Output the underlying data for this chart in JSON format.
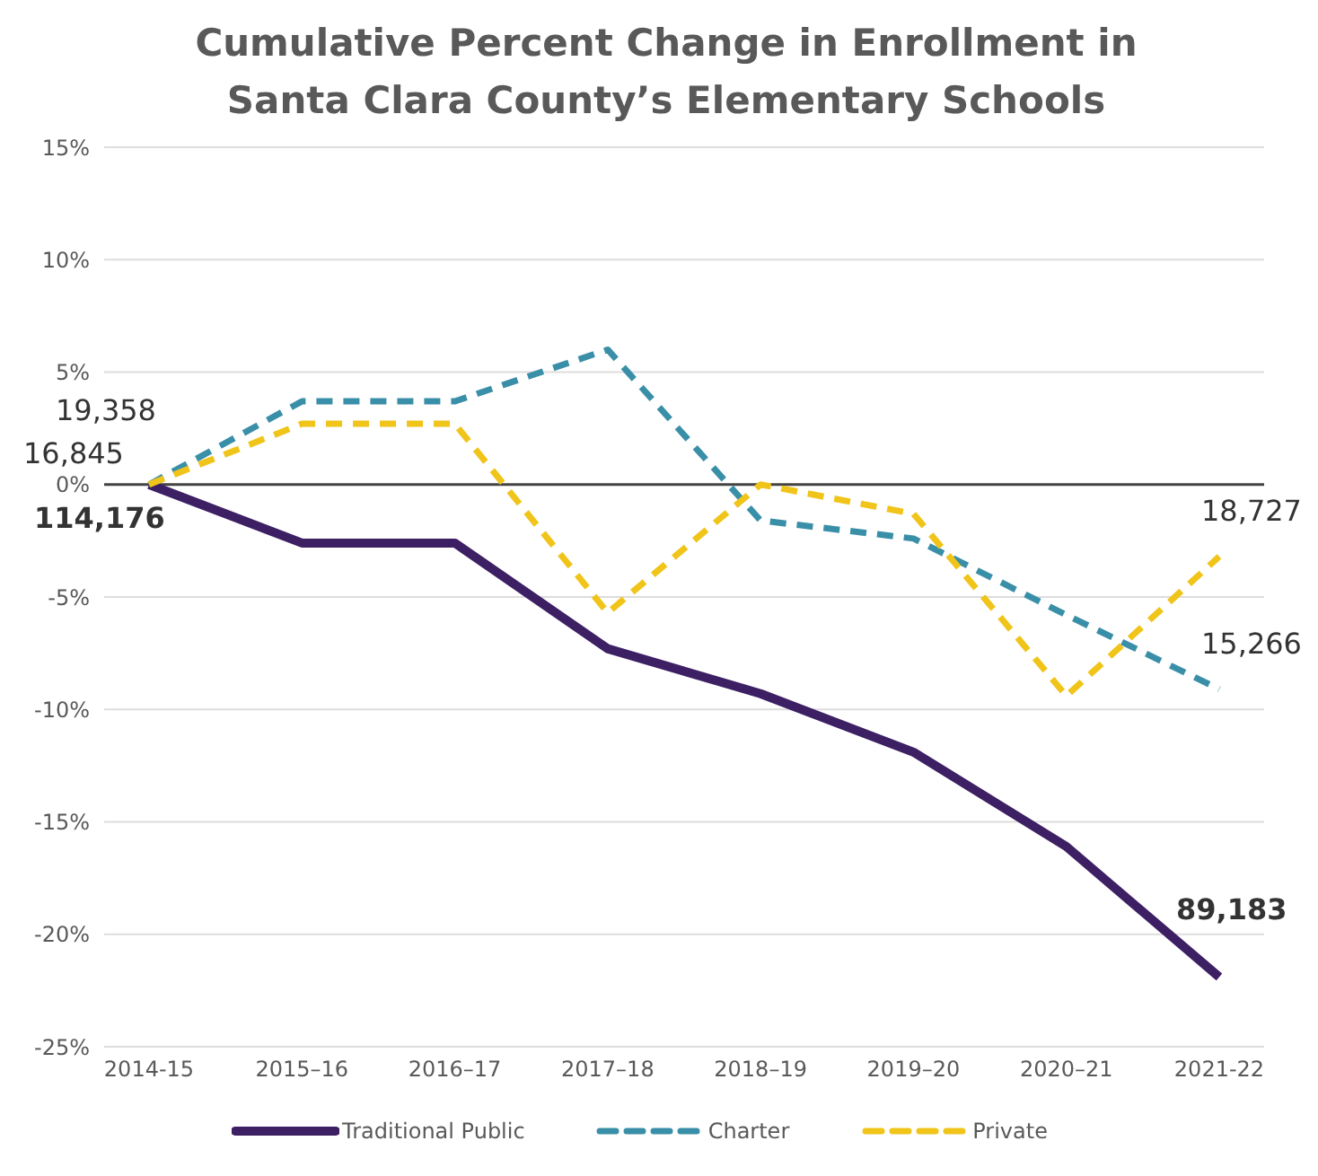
{
  "chart_data": {
    "type": "line",
    "title": "Cumulative Percent Change in Enrollment in Santa Clara County’s Elementary Schools",
    "categories": [
      "2014-15",
      "2015–16",
      "2016–17",
      "2017–18",
      "2018–19",
      "2019–20",
      "2020–21",
      "2021-22"
    ],
    "series": [
      {
        "name": "Traditional Public",
        "color": "#3d1f63",
        "line_style": "solid",
        "values": [
          0,
          -2.6,
          -2.6,
          -7.3,
          -9.3,
          -11.9,
          -16.1,
          -21.9
        ]
      },
      {
        "name": "Charter",
        "color": "#3a8fa8",
        "line_style": "dashed",
        "values": [
          0,
          3.7,
          3.7,
          6.0,
          -1.6,
          -2.4,
          -5.8,
          -9.1
        ]
      },
      {
        "name": "Private",
        "color": "#f0c419",
        "line_style": "dashed",
        "values": [
          0,
          2.7,
          2.7,
          -5.7,
          0,
          -1.3,
          -9.4,
          -3.2
        ]
      }
    ],
    "ylim": [
      -25,
      15
    ],
    "yticks": [
      {
        "value": -25,
        "label": "-25%"
      },
      {
        "value": -20,
        "label": "-20%"
      },
      {
        "value": -15,
        "label": "-15%"
      },
      {
        "value": -10,
        "label": "-10%"
      },
      {
        "value": -5,
        "label": "-5%"
      },
      {
        "value": 0,
        "label": "0%"
      },
      {
        "value": 5,
        "label": "5%"
      },
      {
        "value": 10,
        "label": "10%"
      },
      {
        "value": 15,
        "label": "15%"
      }
    ],
    "ref_lines": [
      {
        "axis": "y",
        "value": 0,
        "label": null,
        "color": "#444444"
      }
    ],
    "annotations": [
      {
        "text": "19,358",
        "x": "2014-15",
        "y": 0
      },
      {
        "text": "16,845",
        "x": "2014-15",
        "y": 0
      },
      {
        "text": "114,176",
        "x": "2014-15",
        "y": 0
      },
      {
        "text": "18,727",
        "x": "2021-22",
        "y": -3.2
      },
      {
        "text": "15,266",
        "x": "2021-22",
        "y": -9.1
      },
      {
        "text": "89,183",
        "x": "2021-22",
        "y": -21.9
      }
    ],
    "grid": "y",
    "legend": "bottom",
    "marker": "none"
  }
}
